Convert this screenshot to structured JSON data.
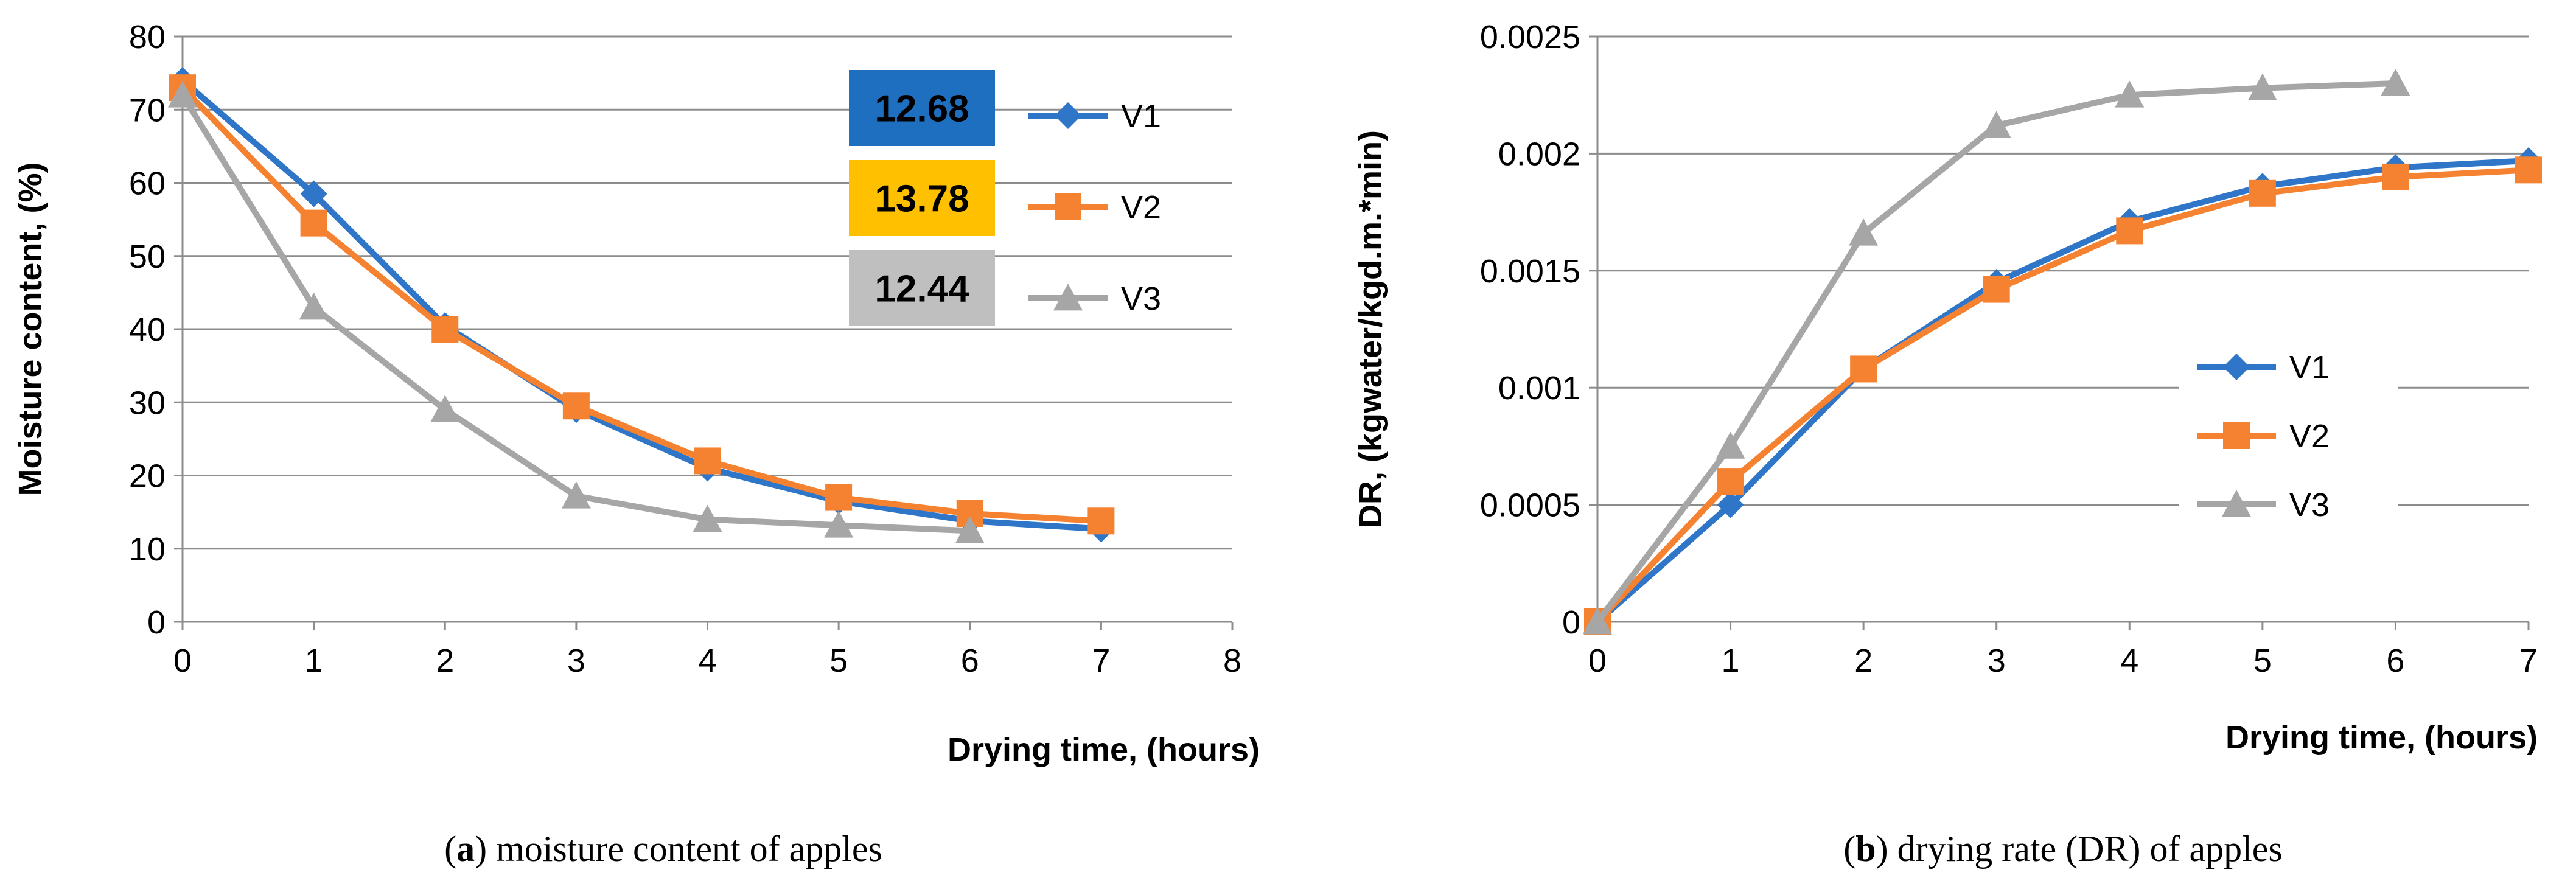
{
  "charts": [
    {
      "type": "line",
      "ylabel": "Moisture content, (%)",
      "xlabel": "Drying time, (hours)",
      "caption_letter": "a",
      "caption_text": "moisture content of apples",
      "xlim": [
        0,
        8
      ],
      "ylim": [
        0,
        80
      ],
      "xticks": [
        "0",
        "1",
        "2",
        "3",
        "4",
        "5",
        "6",
        "7",
        "8"
      ],
      "yticks": [
        "0",
        "10",
        "20",
        "30",
        "40",
        "50",
        "60",
        "70",
        "80"
      ],
      "grid": "horizontal",
      "legend_position": "top-right",
      "annotations": [
        {
          "text": "12.68",
          "bg": "#1f6fc1",
          "fg": "#000000"
        },
        {
          "text": "13.78",
          "bg": "#ffc000",
          "fg": "#000000"
        },
        {
          "text": "12.44",
          "bg": "#bfbfbf",
          "fg": "#000000"
        }
      ],
      "series": [
        {
          "name": "V1",
          "color": "#2f75c8",
          "marker": "diamond",
          "x": [
            0,
            1,
            2,
            3,
            4,
            5,
            6,
            7
          ],
          "y": [
            74,
            58.5,
            40.5,
            29,
            21,
            16.5,
            13.8,
            12.68
          ]
        },
        {
          "name": "V2",
          "color": "#f58231",
          "marker": "square",
          "x": [
            0,
            1,
            2,
            3,
            4,
            5,
            6,
            7
          ],
          "y": [
            73,
            54.5,
            40,
            29.5,
            22,
            17,
            14.8,
            13.78
          ]
        },
        {
          "name": "V3",
          "color": "#a6a6a6",
          "marker": "triangle",
          "x": [
            0,
            1,
            2,
            3,
            4,
            5,
            6
          ],
          "y": [
            72,
            43,
            29,
            17.2,
            14,
            13.2,
            12.44
          ]
        }
      ]
    },
    {
      "type": "line",
      "ylabel": "DR, (kgwater/kgd.m.*min)",
      "xlabel": "Drying time, (hours)",
      "caption_letter": "b",
      "caption_text": "drying rate (DR) of apples",
      "xlim": [
        0,
        7
      ],
      "ylim": [
        0,
        0.0025
      ],
      "xticks": [
        "0",
        "1",
        "2",
        "3",
        "4",
        "5",
        "6",
        "7"
      ],
      "yticks": [
        "0",
        "0.0005",
        "0.001",
        "0.0015",
        "0.002",
        "0.0025"
      ],
      "grid": "horizontal",
      "legend_position": "right",
      "series": [
        {
          "name": "V1",
          "color": "#2f75c8",
          "marker": "diamond",
          "x": [
            0,
            1,
            2,
            3,
            4,
            5,
            6,
            7
          ],
          "y": [
            0,
            0.0005,
            0.00108,
            0.00145,
            0.00171,
            0.00186,
            0.00194,
            0.00197
          ]
        },
        {
          "name": "V2",
          "color": "#f58231",
          "marker": "square",
          "x": [
            0,
            1,
            2,
            3,
            4,
            5,
            6,
            7
          ],
          "y": [
            0,
            0.0006,
            0.00108,
            0.00142,
            0.00167,
            0.00183,
            0.0019,
            0.00193
          ]
        },
        {
          "name": "V3",
          "color": "#a6a6a6",
          "marker": "triangle",
          "x": [
            0,
            1,
            2,
            3,
            4,
            5,
            6
          ],
          "y": [
            0,
            0.00075,
            0.00166,
            0.00212,
            0.00225,
            0.00228,
            0.0023
          ]
        }
      ]
    }
  ]
}
